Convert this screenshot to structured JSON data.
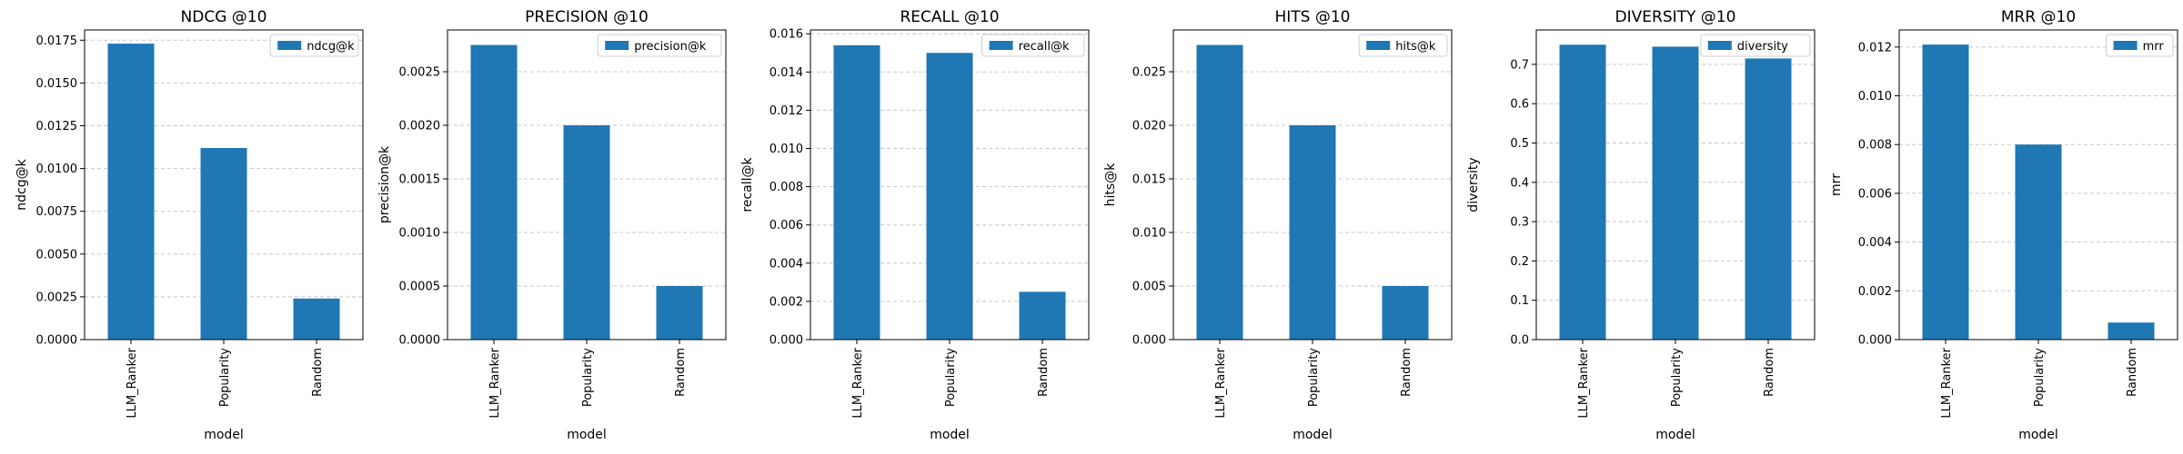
{
  "style": {
    "bar_color": "#1f77b4",
    "grid_color": "#b0b0b0",
    "grid": "horizontal dashed",
    "legend_location": "top-right"
  },
  "chart_data": [
    {
      "type": "bar",
      "title": "NDCG @10",
      "xlabel": "model",
      "ylabel": "ndcg@k",
      "categories": [
        "LLM_Ranker",
        "Popularity",
        "Random"
      ],
      "series": [
        {
          "name": "ndcg@k",
          "values": [
            0.0173,
            0.0112,
            0.0024
          ]
        }
      ],
      "ylim": [
        0,
        0.0181
      ],
      "yticks": [
        "0.0000",
        "0.0025",
        "0.0050",
        "0.0075",
        "0.0100",
        "0.0125",
        "0.0150",
        "0.0175"
      ]
    },
    {
      "type": "bar",
      "title": "PRECISION @10",
      "xlabel": "model",
      "ylabel": "precision@k",
      "categories": [
        "LLM_Ranker",
        "Popularity",
        "Random"
      ],
      "series": [
        {
          "name": "precision@k",
          "values": [
            0.00275,
            0.002,
            0.0005
          ]
        }
      ],
      "ylim": [
        0,
        0.00289
      ],
      "yticks": [
        "0.0000",
        "0.0005",
        "0.0010",
        "0.0015",
        "0.0020",
        "0.0025"
      ]
    },
    {
      "type": "bar",
      "title": "RECALL @10",
      "xlabel": "model",
      "ylabel": "recall@k",
      "categories": [
        "LLM_Ranker",
        "Popularity",
        "Random"
      ],
      "series": [
        {
          "name": "recall@k",
          "values": [
            0.0154,
            0.015,
            0.0025
          ]
        }
      ],
      "ylim": [
        0,
        0.0162
      ],
      "yticks": [
        "0.000",
        "0.002",
        "0.004",
        "0.006",
        "0.008",
        "0.010",
        "0.012",
        "0.014",
        "0.016"
      ]
    },
    {
      "type": "bar",
      "title": "HITS @10",
      "xlabel": "model",
      "ylabel": "hits@k",
      "categories": [
        "LLM_Ranker",
        "Popularity",
        "Random"
      ],
      "series": [
        {
          "name": "hits@k",
          "values": [
            0.0275,
            0.02,
            0.005
          ]
        }
      ],
      "ylim": [
        0,
        0.0289
      ],
      "yticks": [
        "0.000",
        "0.005",
        "0.010",
        "0.015",
        "0.020",
        "0.025"
      ]
    },
    {
      "type": "bar",
      "title": "DIVERSITY @10",
      "xlabel": "model",
      "ylabel": "diversity",
      "categories": [
        "LLM_Ranker",
        "Popularity",
        "Random"
      ],
      "series": [
        {
          "name": "diversity",
          "values": [
            0.75,
            0.745,
            0.715
          ]
        }
      ],
      "ylim": [
        0,
        0.7875
      ],
      "yticks": [
        "0.0",
        "0.1",
        "0.2",
        "0.3",
        "0.4",
        "0.5",
        "0.6",
        "0.7"
      ]
    },
    {
      "type": "bar",
      "title": "MRR @10",
      "xlabel": "model",
      "ylabel": "mrr",
      "categories": [
        "LLM_Ranker",
        "Popularity",
        "Random"
      ],
      "series": [
        {
          "name": "mrr",
          "values": [
            0.0121,
            0.008,
            0.0007
          ]
        }
      ],
      "ylim": [
        0,
        0.0127
      ],
      "yticks": [
        "0.000",
        "0.002",
        "0.004",
        "0.006",
        "0.008",
        "0.010",
        "0.012"
      ]
    }
  ]
}
